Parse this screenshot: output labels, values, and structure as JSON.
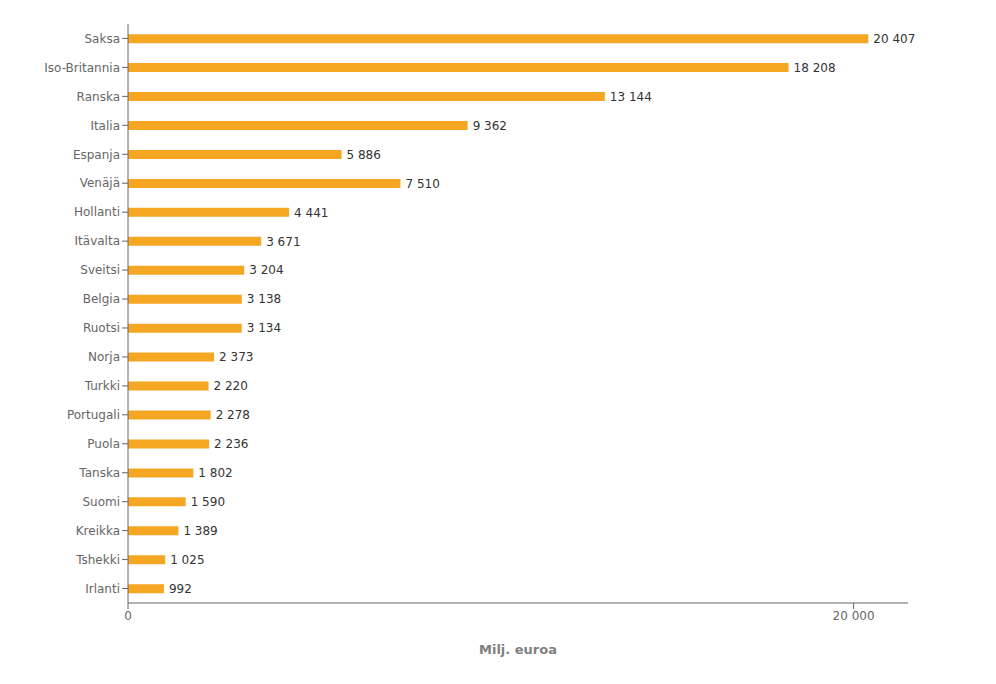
{
  "chart_data": {
    "type": "bar",
    "orientation": "horizontal",
    "categories": [
      "Saksa",
      "Iso-Britannia",
      "Ranska",
      "Italia",
      "Espanja",
      "Venäjä",
      "Hollanti",
      "Itävalta",
      "Sveitsi",
      "Belgia",
      "Ruotsi",
      "Norja",
      "Turkki",
      "Portugali",
      "Puola",
      "Tanska",
      "Suomi",
      "Kreikka",
      "Tshekki",
      "Irlanti"
    ],
    "values": [
      20407,
      18208,
      13144,
      9362,
      5886,
      7510,
      4441,
      3671,
      3204,
      3138,
      3134,
      2373,
      2220,
      2278,
      2236,
      1802,
      1590,
      1389,
      1025,
      992
    ],
    "value_labels": [
      "20 407",
      "18 208",
      "13 144",
      "9 362",
      "5 886",
      "7 510",
      "4 441",
      "3 671",
      "3 204",
      "3 138",
      "3 134",
      "2 373",
      "2 220",
      "2 278",
      "2 236",
      "1 802",
      "1 590",
      "1 389",
      "1 025",
      "992"
    ],
    "data_labels": true,
    "color": "#F5A623",
    "xlabel": "Milj. euroa",
    "xlim": [
      0,
      21500
    ],
    "xticks": [
      0,
      {
        "value": 20000,
        "label": "20 000"
      }
    ],
    "grid": false
  }
}
